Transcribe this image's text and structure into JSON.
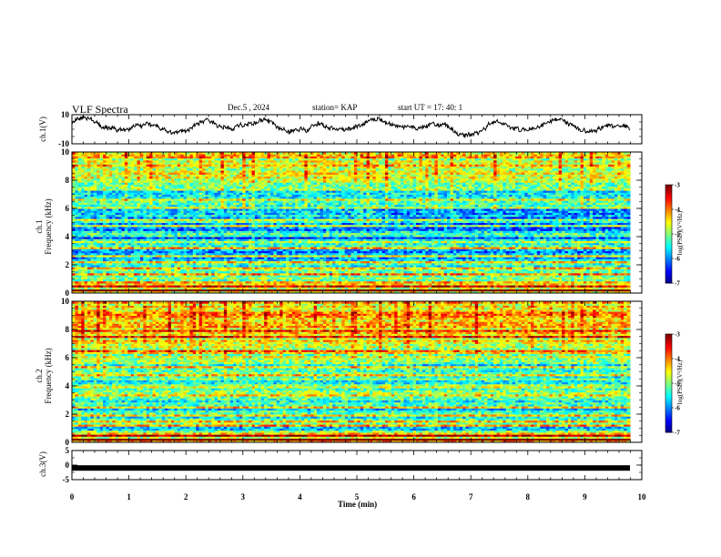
{
  "header": {
    "title": "VLF Spectra",
    "date": "Dec.5  , 2024",
    "station": "station= KAP",
    "start_ut": "start  UT  =   17: 40: 1"
  },
  "chart_data": [
    {
      "type": "line",
      "name": "ch1-voltage",
      "ylabel": "ch.1(V)",
      "ylim": [
        -10,
        10
      ],
      "yticks": [
        "10",
        "-10"
      ],
      "xlim": [
        0,
        10
      ],
      "description_series": "noisy waveform oscillating roughly between -5 and 9"
    },
    {
      "type": "heatmap",
      "name": "ch1-spectrogram",
      "ylabel": "ch.1\nFrequency (kHz)",
      "ylabel_line1": "ch.1",
      "ylabel_line2": "Frequency (kHz)",
      "ylim": [
        0,
        10
      ],
      "yticks": [
        "0",
        "2",
        "4",
        "6",
        "8",
        "10"
      ],
      "xlim": [
        0,
        10
      ],
      "colorbar": {
        "label": "log(PSD)(V²/Hz)",
        "range": [
          -7,
          -3
        ],
        "ticks": [
          "-3",
          "-4",
          "-5",
          "-6",
          "-7"
        ]
      }
    },
    {
      "type": "heatmap",
      "name": "ch2-spectrogram",
      "ylabel": "ch.2\nFrequency (kHz)",
      "ylabel_line1": "ch.2",
      "ylabel_line2": "Frequency (kHz)",
      "ylim": [
        0,
        10
      ],
      "yticks": [
        "0",
        "2",
        "4",
        "6",
        "8",
        "10"
      ],
      "xlim": [
        0,
        10
      ],
      "colorbar": {
        "label": "log(PSD)(V²/Hz)",
        "range": [
          -7,
          -3
        ],
        "ticks": [
          "-3",
          "-4",
          "-5",
          "-6",
          "-7"
        ]
      }
    },
    {
      "type": "line",
      "name": "ch3-voltage",
      "ylabel": "ch.3(V)",
      "ylim": [
        -5,
        5
      ],
      "yticks": [
        "5",
        "0",
        "-5"
      ],
      "xlim": [
        0,
        10
      ],
      "constant_value": -1,
      "xticks": [
        "0",
        "1",
        "2",
        "3",
        "4",
        "5",
        "6",
        "7",
        "8",
        "9",
        "10"
      ],
      "xlabel": "Time (min)"
    }
  ]
}
